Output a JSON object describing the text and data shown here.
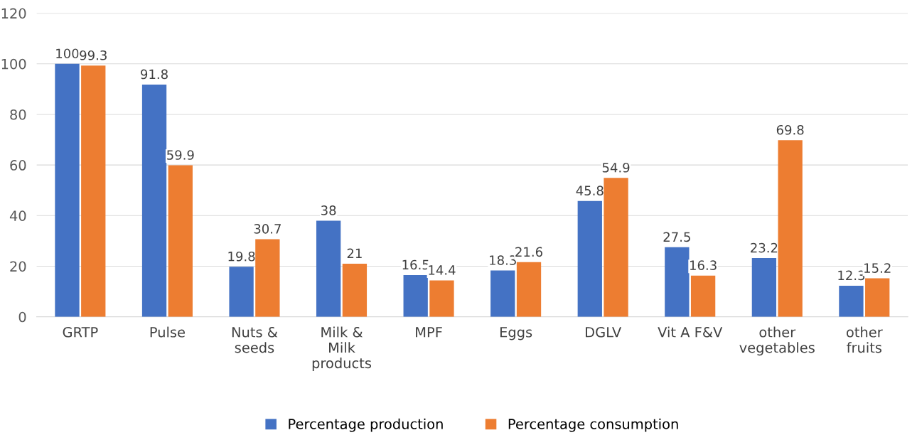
{
  "chart_data": {
    "type": "bar",
    "categories": [
      "GRTP",
      "Pulse",
      "Nuts &\nseeds",
      "Milk &\nMilk\nproducts",
      "MPF",
      "Eggs",
      "DGLV",
      "Vit A F&V",
      "other\nvegetables",
      "other\nfruits"
    ],
    "series": [
      {
        "name": "Percentage production",
        "color": "#4472c4",
        "values": [
          100,
          91.8,
          19.8,
          38,
          16.5,
          18.3,
          45.8,
          27.5,
          23.2,
          12.3
        ]
      },
      {
        "name": "Percentage consumption",
        "color": "#ed7d31",
        "values": [
          99.3,
          59.9,
          30.7,
          21,
          14.4,
          21.6,
          54.9,
          16.3,
          69.8,
          15.2
        ]
      }
    ],
    "ylim": [
      0,
      120
    ],
    "yticks": [
      0,
      20,
      40,
      60,
      80,
      100,
      120
    ],
    "grid": "y",
    "legend": "bottom",
    "data_labels": true
  }
}
